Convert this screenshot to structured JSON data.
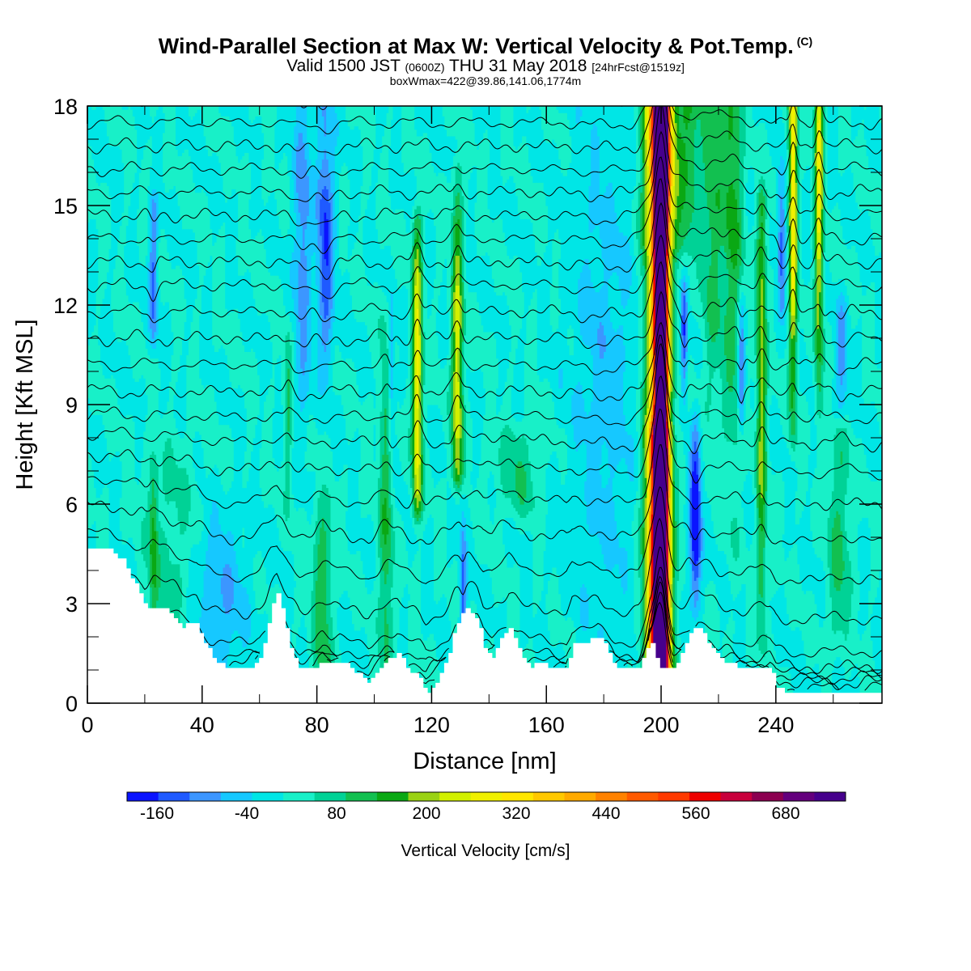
{
  "header": {
    "title": "Wind-Parallel Section at Max W: Vertical Velocity & Pot.Temp.",
    "copyright": "(C)",
    "valid_prefix": "Valid 1500 JST",
    "valid_utc": "(0600Z)",
    "valid_date": "THU 31 May 2018",
    "forecast": "[24hrFcst@1519z]",
    "boxw": "boxWmax=422@39.86,141.06,1774m"
  },
  "chart_data": {
    "type": "heatmap",
    "title": "Wind-Parallel Section at Max W: Vertical Velocity & Pot.Temp.",
    "xlabel": "Distance [nm]",
    "ylabel": "Height [Kft MSL]",
    "xlim": [
      0,
      277
    ],
    "ylim": [
      0,
      18
    ],
    "x_ticks": [
      "0",
      "40",
      "80",
      "120",
      "160",
      "200",
      "240"
    ],
    "y_ticks": [
      "0",
      "3",
      "6",
      "9",
      "12",
      "15",
      "18"
    ],
    "x_tick_values": [
      0,
      40,
      80,
      120,
      160,
      200,
      240
    ],
    "y_tick_values": [
      0,
      3,
      6,
      9,
      12,
      15,
      18
    ],
    "colorbar": {
      "label": "Vertical Velocity [cm/s]",
      "tick_labels": [
        "-160",
        "-40",
        "80",
        "200",
        "320",
        "440",
        "560",
        "680"
      ],
      "tick_values": [
        -160,
        -40,
        80,
        200,
        320,
        440,
        560,
        680
      ],
      "min": -200,
      "max": 720,
      "step": 40,
      "colors": [
        "#0a14ff",
        "#1f5aff",
        "#3c96ff",
        "#16c8ff",
        "#00e6e6",
        "#18f0c8",
        "#00d296",
        "#12c050",
        "#0aa814",
        "#9ad214",
        "#d2f000",
        "#f0f000",
        "#ffe600",
        "#ffc800",
        "#ffaa00",
        "#ff8200",
        "#ff5a00",
        "#ff3a00",
        "#ee0000",
        "#c8003c",
        "#8c0050",
        "#64007d",
        "#46008c"
      ]
    },
    "background_w": 0,
    "terrain": [
      [
        0,
        4.6
      ],
      [
        8,
        4.6
      ],
      [
        12,
        4.3
      ],
      [
        16,
        3.6
      ],
      [
        19,
        3.2
      ],
      [
        20,
        2.9
      ],
      [
        26,
        2.9
      ],
      [
        30,
        2.6
      ],
      [
        33,
        2.3
      ],
      [
        38,
        2.4
      ],
      [
        40,
        1.9
      ],
      [
        44,
        1.3
      ],
      [
        50,
        1.0
      ],
      [
        56,
        1.0
      ],
      [
        60,
        1.4
      ],
      [
        62,
        2.0
      ],
      [
        64,
        2.9
      ],
      [
        66,
        3.3
      ],
      [
        68,
        2.6
      ],
      [
        70,
        1.8
      ],
      [
        74,
        1.0
      ],
      [
        79,
        1.0
      ],
      [
        82,
        1.3
      ],
      [
        85,
        1.1
      ],
      [
        88,
        1.3
      ],
      [
        92,
        1.0
      ],
      [
        95,
        0.8
      ],
      [
        98,
        0.6
      ],
      [
        100,
        0.9
      ],
      [
        104,
        1.2
      ],
      [
        108,
        1.5
      ],
      [
        111,
        1.1
      ],
      [
        113,
        0.9
      ],
      [
        116,
        0.7
      ],
      [
        118,
        0.3
      ],
      [
        122,
        0.7
      ],
      [
        126,
        1.5
      ],
      [
        128,
        2.2
      ],
      [
        132,
        2.9
      ],
      [
        136,
        2.4
      ],
      [
        138,
        1.6
      ],
      [
        141,
        1.4
      ],
      [
        143,
        1.8
      ],
      [
        147,
        2.3
      ],
      [
        150,
        1.6
      ],
      [
        154,
        1.1
      ],
      [
        158,
        1.2
      ],
      [
        162,
        1.0
      ],
      [
        167,
        1.0
      ],
      [
        169,
        1.8
      ],
      [
        174,
        1.8
      ],
      [
        178,
        2.0
      ],
      [
        181,
        1.6
      ],
      [
        184,
        1.1
      ],
      [
        190,
        1.0
      ],
      [
        192,
        1.0
      ],
      [
        194,
        1.4
      ],
      [
        196,
        1.9
      ],
      [
        198,
        1.4
      ],
      [
        200,
        1.0
      ],
      [
        204,
        1.0
      ],
      [
        207,
        1.5
      ],
      [
        210,
        2.1
      ],
      [
        213,
        2.3
      ],
      [
        215,
        2.0
      ],
      [
        218,
        1.6
      ],
      [
        220,
        1.3
      ],
      [
        224,
        1.2
      ],
      [
        228,
        1.0
      ],
      [
        234,
        1.0
      ],
      [
        238,
        1.0
      ],
      [
        240,
        0.5
      ],
      [
        244,
        0.3
      ],
      [
        277,
        0.3
      ]
    ],
    "features": [
      {
        "name": "updraft",
        "x": 200,
        "w": 740,
        "sx": 2.2,
        "y0": 0.5,
        "y1": 18,
        "yc": 18,
        "sy": 30
      },
      {
        "name": "updraft",
        "x": 199,
        "w": 340,
        "sx": 4.5,
        "y0": 0.5,
        "y1": 18,
        "yc": 8,
        "sy": 30
      },
      {
        "name": "updraft",
        "x": 199,
        "w": 280,
        "sx": 3.5,
        "y0": 0.5,
        "y1": 8,
        "yc": 4,
        "sy": 6
      },
      {
        "name": "updraft",
        "x": 201,
        "w": 200,
        "sx": 6,
        "y0": 14,
        "y1": 18,
        "yc": 17,
        "sy": 3
      },
      {
        "name": "updraft",
        "x": 115,
        "w": 270,
        "sx": 1.8,
        "y0": 6,
        "y1": 14.5,
        "yc": 9.5,
        "sy": 4
      },
      {
        "name": "updraft",
        "x": 129,
        "w": 230,
        "sx": 2.0,
        "y0": 7,
        "y1": 16,
        "yc": 10,
        "sy": 4
      },
      {
        "name": "updraft",
        "x": 246,
        "w": 300,
        "sx": 1.5,
        "y0": 8,
        "y1": 18,
        "yc": 16,
        "sy": 5
      },
      {
        "name": "updraft",
        "x": 255,
        "w": 270,
        "sx": 1.5,
        "y0": 9,
        "y1": 18,
        "yc": 16.5,
        "sy": 5
      },
      {
        "name": "updraft",
        "x": 235,
        "w": 180,
        "sx": 1.8,
        "y0": 2,
        "y1": 15,
        "yc": 10,
        "sy": 6
      },
      {
        "name": "updraft",
        "x": 225,
        "w": 130,
        "sx": 3.5,
        "y0": 4,
        "y1": 18,
        "yc": 16,
        "sy": 6
      },
      {
        "name": "updraft",
        "x": 218,
        "w": 110,
        "sx": 4,
        "y0": 8,
        "y1": 18,
        "yc": 16,
        "sy": 5
      },
      {
        "name": "updraft",
        "x": 210,
        "w": 100,
        "sx": 3.5,
        "y0": 14,
        "y1": 18,
        "yc": 17,
        "sy": 3
      },
      {
        "name": "updraft",
        "x": 104,
        "w": 110,
        "sx": 2.5,
        "y0": 1,
        "y1": 12,
        "yc": 5,
        "sy": 5
      },
      {
        "name": "updraft",
        "x": 82,
        "w": 110,
        "sx": 3.5,
        "y0": 1,
        "y1": 6,
        "yc": 3,
        "sy": 3
      },
      {
        "name": "updraft",
        "x": 23,
        "w": 110,
        "sx": 1.5,
        "y0": 2.5,
        "y1": 7,
        "yc": 5,
        "sy": 2
      },
      {
        "name": "updraft",
        "x": 70,
        "w": 90,
        "sx": 1.5,
        "y0": 5,
        "y1": 11,
        "yc": 9,
        "sy": 2
      },
      {
        "name": "updraft",
        "x": 262,
        "w": 90,
        "sx": 4,
        "y0": 2,
        "y1": 8,
        "yc": 5,
        "sy": 3
      },
      {
        "name": "updraft",
        "x": 150,
        "w": 70,
        "sx": 8,
        "y0": 6,
        "y1": 8,
        "yc": 7,
        "sy": 1.5
      },
      {
        "name": "updraft",
        "x": 30,
        "w": 60,
        "sx": 10,
        "y0": 0,
        "y1": 8,
        "yc": 4,
        "sy": 3
      },
      {
        "name": "downdraft",
        "x": 83,
        "w": -160,
        "sx": 3,
        "y0": 10,
        "y1": 18,
        "yc": 14,
        "sy": 3
      },
      {
        "name": "downdraft",
        "x": 75,
        "w": -110,
        "sx": 3,
        "y0": 8,
        "y1": 18,
        "yc": 14,
        "sy": 4
      },
      {
        "name": "downdraft",
        "x": 212,
        "w": -230,
        "sx": 2.0,
        "y0": 3,
        "y1": 8.5,
        "yc": 5.5,
        "sy": 2
      },
      {
        "name": "downdraft",
        "x": 228,
        "w": -160,
        "sx": 1.2,
        "y0": 8.5,
        "y1": 12,
        "yc": 10,
        "sy": 1.5
      },
      {
        "name": "downdraft",
        "x": 208,
        "w": -150,
        "sx": 1.2,
        "y0": 9,
        "y1": 12.5,
        "yc": 11,
        "sy": 1.5
      },
      {
        "name": "downdraft",
        "x": 23,
        "w": -130,
        "sx": 1.5,
        "y0": 11,
        "y1": 15,
        "yc": 13,
        "sy": 2
      },
      {
        "name": "downdraft",
        "x": 242,
        "w": -130,
        "sx": 1.5,
        "y0": 12,
        "y1": 16,
        "yc": 14,
        "sy": 2
      },
      {
        "name": "downdraft",
        "x": 131,
        "w": -140,
        "sx": 1.2,
        "y0": 1,
        "y1": 6,
        "yc": 3,
        "sy": 2
      },
      {
        "name": "downdraft",
        "x": 106,
        "w": -100,
        "sx": 1.2,
        "y0": 8,
        "y1": 12,
        "yc": 10,
        "sy": 2
      },
      {
        "name": "downdraft",
        "x": 263,
        "w": -100,
        "sx": 2,
        "y0": 9,
        "y1": 12,
        "yc": 10.5,
        "sy": 1.5
      },
      {
        "name": "downdraft",
        "x": 180,
        "w": -60,
        "sx": 12,
        "y0": 1,
        "y1": 18,
        "yc": 10,
        "sy": 6
      },
      {
        "name": "downdraft",
        "x": 45,
        "w": -90,
        "sx": 10,
        "y0": 1,
        "y1": 6,
        "yc": 3,
        "sy": 2
      }
    ],
    "theta_levels": [
      0.3,
      0.45,
      0.6,
      0.75,
      0.95,
      1.4,
      2.4,
      3.6,
      4.8,
      5.9,
      6.9,
      7.8,
      8.6,
      9.4,
      10.2,
      11,
      11.8,
      12.6,
      13.3,
      14,
      14.7,
      15.4,
      16.1,
      16.8,
      17.5,
      18.2
    ]
  }
}
